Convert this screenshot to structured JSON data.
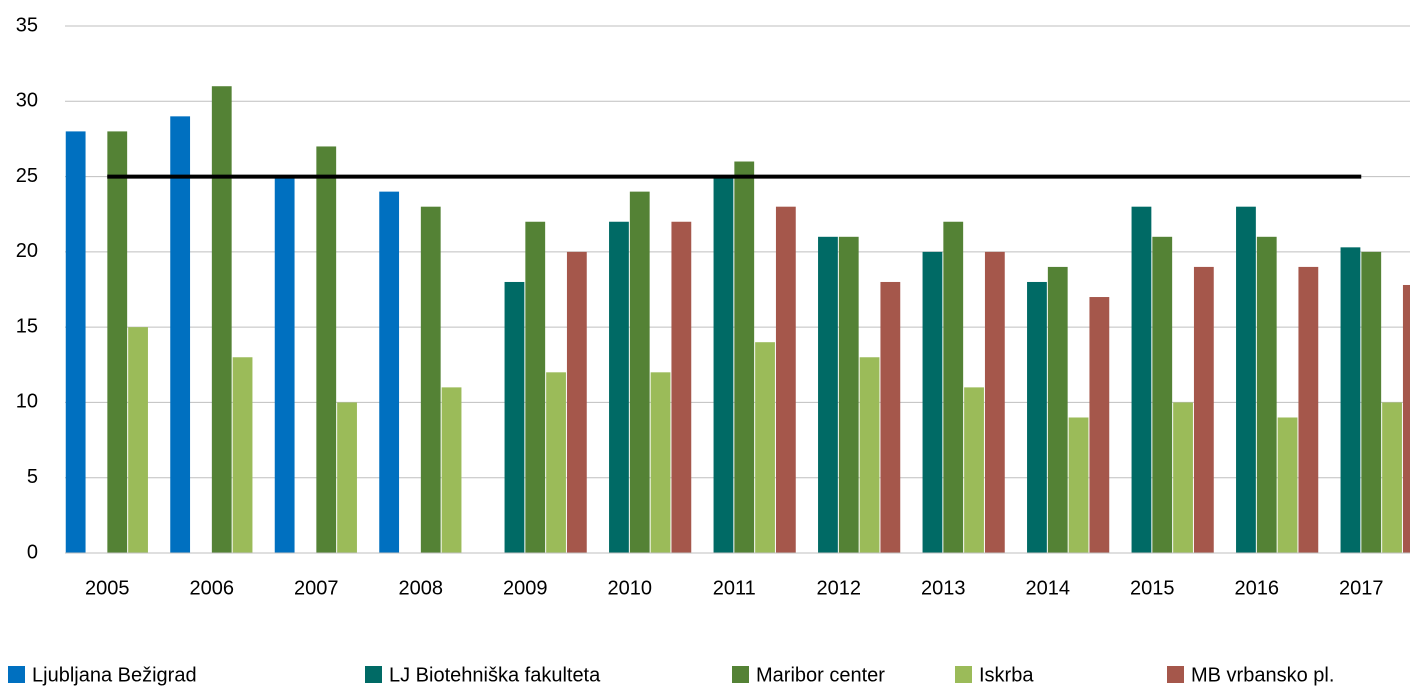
{
  "chart_data": {
    "type": "bar",
    "categories": [
      "2005",
      "2006",
      "2007",
      "2008",
      "2009",
      "2010",
      "2011",
      "2012",
      "2013",
      "2014",
      "2015",
      "2016",
      "2017"
    ],
    "series": [
      {
        "name": "Ljubljana Bežigrad",
        "color": "#0070c0",
        "values": [
          28,
          29,
          25,
          24,
          null,
          null,
          null,
          null,
          null,
          null,
          null,
          null,
          null
        ]
      },
      {
        "name": "LJ Biotehniška fakulteta",
        "color": "#006a65",
        "values": [
          null,
          null,
          null,
          null,
          18,
          22,
          25,
          21,
          20,
          18,
          23,
          23,
          20.3
        ]
      },
      {
        "name": "Maribor center",
        "color": "#548235",
        "values": [
          28,
          31,
          27,
          23,
          22,
          24,
          26,
          21,
          22,
          19,
          21,
          21,
          20
        ]
      },
      {
        "name": "Iskrba",
        "color": "#9bbb59",
        "values": [
          15,
          13,
          10,
          11,
          12,
          12,
          14,
          13,
          11,
          9,
          10,
          9,
          10
        ]
      },
      {
        "name": "MB vrbansko pl.",
        "color": "#a5574b",
        "values": [
          null,
          null,
          null,
          null,
          20,
          22,
          23,
          18,
          20,
          17,
          19,
          19,
          17.8
        ]
      }
    ],
    "reference_line": {
      "value": 25,
      "color": "#000000"
    },
    "ylim": [
      0,
      35
    ],
    "yticks": [
      0,
      5,
      10,
      15,
      20,
      25,
      30,
      35
    ],
    "grid": true,
    "legend": "bottom"
  }
}
